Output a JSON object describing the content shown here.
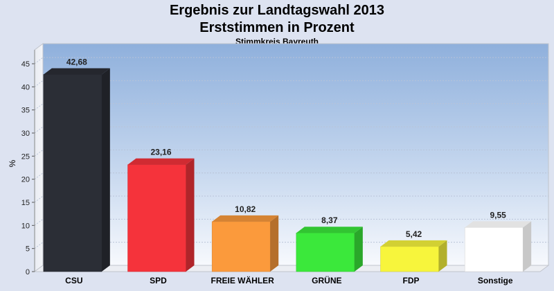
{
  "chart_data": {
    "type": "bar",
    "title": "Ergebnis zur Landtagswahl 2013",
    "subtitle": "Erststimmen in Prozent",
    "subsubtitle": "Stimmkreis Bayreuth",
    "ylabel": "%",
    "xlabel": "",
    "ylim": [
      0,
      48
    ],
    "yticks": [
      0,
      5,
      10,
      15,
      20,
      25,
      30,
      35,
      40,
      45
    ],
    "categories": [
      "CSU",
      "SPD",
      "FREIE WÄHLER",
      "GRÜNE",
      "FDP",
      "Sonstige"
    ],
    "values": [
      42.68,
      23.16,
      10.82,
      8.37,
      5.42,
      9.55
    ],
    "value_labels": [
      "42,68",
      "23,16",
      "10,82",
      "8,37",
      "5,42",
      "9,55"
    ],
    "colors": [
      "#2b2e36",
      "#f5333b",
      "#fb9a3c",
      "#3be83b",
      "#f7f53c",
      "#ffffff"
    ],
    "grid": true,
    "legend": "none"
  }
}
